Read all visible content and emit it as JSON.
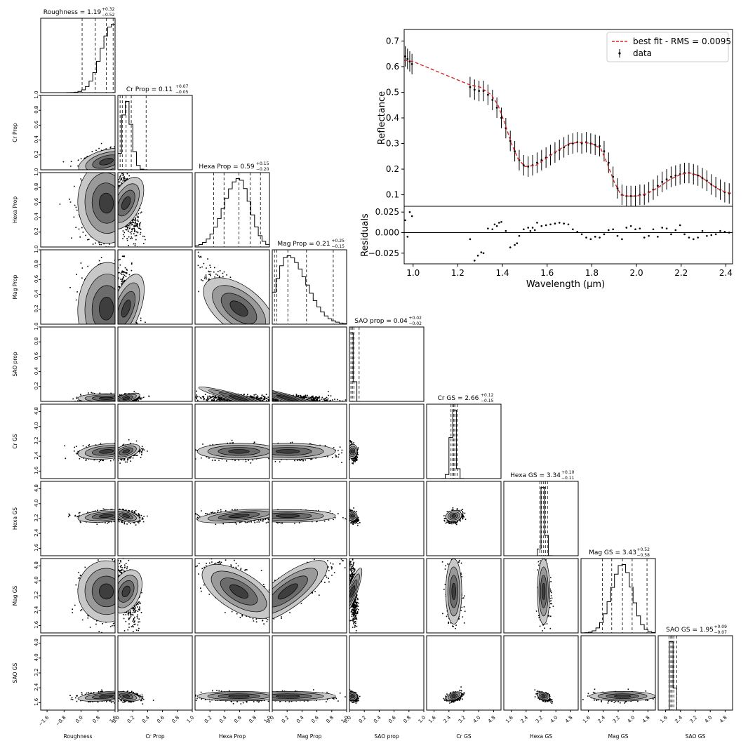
{
  "chart_data": [
    {
      "type": "corner",
      "parameters": [
        {
          "name": "Roughness",
          "title": "Roughness = 1.19",
          "median": 1.19,
          "plus": "0.32",
          "minus": "0.52",
          "range": [
            -1.9,
            1.6
          ],
          "ticks": [
            "−1.6",
            "−0.8",
            "0.0",
            "0.8",
            "1.6"
          ],
          "tick_values": [
            -1.6,
            -0.8,
            0.0,
            0.8,
            1.6
          ],
          "quantiles": [
            0.05,
            0.67,
            1.19,
            1.51
          ]
        },
        {
          "name": "Cr Prop",
          "title": "Cr Prop = 0.11",
          "median": 0.11,
          "plus": "0.07",
          "minus": "0.05",
          "range": [
            0.0,
            1.0
          ],
          "ticks": [
            "0.0",
            "0.2",
            "0.4",
            "0.6",
            "0.8",
            "1.0"
          ],
          "tick_values": [
            0,
            0.2,
            0.4,
            0.6,
            0.8,
            1.0
          ],
          "quantiles": [
            0.03,
            0.06,
            0.11,
            0.18,
            0.38
          ]
        },
        {
          "name": "Hexa Prop",
          "title": "Hexa Prop = 0.59",
          "median": 0.59,
          "plus": "0.15",
          "minus": "0.20",
          "range": [
            0.0,
            1.0
          ],
          "ticks": [
            "0.2",
            "0.4",
            "0.6",
            "0.8",
            "1.0"
          ],
          "tick_values": [
            0.2,
            0.4,
            0.6,
            0.8,
            1.0
          ],
          "quantiles": [
            0.25,
            0.39,
            0.59,
            0.74,
            0.88
          ]
        },
        {
          "name": "Mag Prop",
          "title": "Mag Prop = 0.21",
          "median": 0.21,
          "plus": "0.25",
          "minus": "0.15",
          "range": [
            0.0,
            1.0
          ],
          "ticks": [
            "0.0",
            "0.2",
            "0.4",
            "0.6",
            "0.8",
            "1.0"
          ],
          "tick_values": [
            0,
            0.2,
            0.4,
            0.6,
            0.8,
            1.0
          ],
          "quantiles": [
            0.03,
            0.06,
            0.21,
            0.46,
            0.82
          ]
        },
        {
          "name": "SAO prop",
          "title": "SAO prop = 0.04",
          "median": 0.04,
          "plus": "0.02",
          "minus": "0.02",
          "range": [
            0.0,
            1.0
          ],
          "ticks": [
            "0.0",
            "0.2",
            "0.4",
            "0.6",
            "0.8",
            "1.0"
          ],
          "tick_values": [
            0,
            0.2,
            0.4,
            0.6,
            0.8,
            1.0
          ],
          "quantiles": [
            0.02,
            0.04,
            0.06,
            0.13
          ]
        },
        {
          "name": "Cr GS",
          "title": "Cr GS = 2.66",
          "median": 2.66,
          "plus": "0.12",
          "minus": "0.15",
          "range": [
            1.2,
            5.2
          ],
          "ticks": [
            "1.6",
            "2.4",
            "3.2",
            "4.0",
            "4.8"
          ],
          "tick_values": [
            1.6,
            2.4,
            3.2,
            4.0,
            4.8
          ],
          "quantiles": [
            2.51,
            2.6,
            2.66,
            2.72,
            2.84
          ]
        },
        {
          "name": "Hexa GS",
          "title": "Hexa GS = 3.34",
          "median": 3.34,
          "plus": "0.10",
          "minus": "0.11",
          "range": [
            1.2,
            5.2
          ],
          "ticks": [
            "1.6",
            "2.4",
            "3.2",
            "4.0",
            "4.8"
          ],
          "tick_values": [
            1.6,
            2.4,
            3.2,
            4.0,
            4.8
          ],
          "quantiles": [
            3.14,
            3.23,
            3.34,
            3.44,
            3.55
          ]
        },
        {
          "name": "Mag GS",
          "title": "Mag GS = 3.43",
          "median": 3.43,
          "plus": "0.52",
          "minus": "0.58",
          "range": [
            1.2,
            5.2
          ],
          "ticks": [
            "1.6",
            "2.4",
            "3.2",
            "4.0",
            "4.8"
          ],
          "tick_values": [
            1.6,
            2.4,
            3.2,
            4.0,
            4.8
          ],
          "quantiles": [
            2.35,
            2.85,
            3.43,
            3.95,
            4.75
          ]
        },
        {
          "name": "SAO GS",
          "title": "SAO GS = 1.95",
          "median": 1.95,
          "plus": "0.09",
          "minus": "0.07",
          "range": [
            1.2,
            5.2
          ],
          "ticks": [
            "1.6",
            "2.4",
            "3.2",
            "4.0",
            "4.8"
          ],
          "tick_values": [
            1.6,
            2.4,
            3.2,
            4.0,
            4.8
          ],
          "quantiles": [
            1.78,
            1.88,
            1.95,
            2.04,
            2.2
          ]
        }
      ],
      "row_tick_labels": {
        "Cr Prop": [
          "0.2",
          "0.4",
          "0.6",
          "0.8",
          "1.0"
        ],
        "Hexa Prop": [
          "0.2",
          "0.4",
          "0.6",
          "0.8",
          "1.0"
        ],
        "Mag Prop": [
          "0.2",
          "0.4",
          "0.6",
          "0.8",
          "1.0"
        ],
        "SAO prop": [
          "0.2",
          "0.4",
          "0.6",
          "0.8",
          "1.0"
        ],
        "Cr GS": [
          "1.6",
          "2.4",
          "3.2",
          "4.0",
          "4.8"
        ],
        "Hexa GS": [
          "1.6",
          "2.4",
          "3.2",
          "4.0",
          "4.8"
        ],
        "Mag GS": [
          "1.6",
          "2.4",
          "3.2",
          "4.0",
          "4.8"
        ],
        "SAO GS": [
          "1.6",
          "2.4",
          "3.2",
          "4.0",
          "4.8"
        ]
      },
      "row_tick_values": {
        "Cr Prop": [
          0.2,
          0.4,
          0.6,
          0.8,
          1.0
        ],
        "Hexa Prop": [
          0.2,
          0.4,
          0.6,
          0.8,
          1.0
        ],
        "Mag Prop": [
          0.2,
          0.4,
          0.6,
          0.8,
          1.0
        ],
        "SAO prop": [
          0.2,
          0.4,
          0.6,
          0.8,
          1.0
        ],
        "Cr GS": [
          1.6,
          2.4,
          3.2,
          4.0,
          4.8
        ],
        "Hexa GS": [
          1.6,
          2.4,
          3.2,
          4.0,
          4.8
        ],
        "Mag GS": [
          1.6,
          2.4,
          3.2,
          4.0,
          4.8
        ],
        "SAO GS": [
          1.6,
          2.4,
          3.2,
          4.0,
          4.8
        ]
      },
      "colors": {
        "mark": "#000000",
        "dash": "#333333",
        "contour": [
          "#c8c8c8",
          "#9a9a9a",
          "#6c6c6c",
          "#3e3e3e"
        ]
      }
    },
    {
      "type": "line",
      "title": "",
      "xlabel": "Wavelength (μm)",
      "ylabel": "Reflectance",
      "xlim": [
        0.96,
        2.43
      ],
      "ylim": [
        0.055,
        0.745
      ],
      "xticks": [
        "1.0",
        "1.2",
        "1.4",
        "1.6",
        "1.8",
        "2.0",
        "2.2",
        "2.4"
      ],
      "xtick_values": [
        1.0,
        1.2,
        1.4,
        1.6,
        1.8,
        2.0,
        2.2,
        2.4
      ],
      "yticks": [
        "0.1",
        "0.2",
        "0.3",
        "0.4",
        "0.5",
        "0.6",
        "0.7"
      ],
      "ytick_values": [
        0.1,
        0.2,
        0.3,
        0.4,
        0.5,
        0.6,
        0.7
      ],
      "legend": {
        "placement": "top-right",
        "fit_label": "best fit - RMS = 0.0095",
        "data_label": "data"
      },
      "colors": {
        "fit": "#d62728",
        "data": "#000000"
      },
      "fit": {
        "x": [
          0.96,
          1.0,
          1.25,
          1.3,
          1.35,
          1.38,
          1.41,
          1.44,
          1.47,
          1.5,
          1.55,
          1.6,
          1.65,
          1.7,
          1.75,
          1.8,
          1.84,
          1.87,
          1.9,
          1.93,
          1.96,
          2.0,
          2.05,
          2.1,
          2.15,
          2.2,
          2.24,
          2.28,
          2.32,
          2.36,
          2.4,
          2.43
        ],
        "y": [
          0.625,
          0.62,
          0.53,
          0.52,
          0.49,
          0.45,
          0.38,
          0.3,
          0.24,
          0.21,
          0.215,
          0.245,
          0.275,
          0.3,
          0.305,
          0.3,
          0.28,
          0.22,
          0.15,
          0.1,
          0.095,
          0.095,
          0.105,
          0.13,
          0.16,
          0.18,
          0.185,
          0.175,
          0.15,
          0.125,
          0.11,
          0.105
        ]
      },
      "data_points": {
        "x": [
          0.965,
          0.975,
          0.985,
          0.995,
          1.255,
          1.275,
          1.295,
          1.315,
          1.335,
          1.355,
          1.375,
          1.395,
          1.415,
          1.435,
          1.455,
          1.475,
          1.495,
          1.515,
          1.535,
          1.555,
          1.575,
          1.595,
          1.615,
          1.635,
          1.655,
          1.675,
          1.695,
          1.715,
          1.735,
          1.755,
          1.775,
          1.795,
          1.815,
          1.835,
          1.855,
          1.875,
          1.895,
          1.915,
          1.935,
          1.955,
          1.975,
          1.995,
          2.015,
          2.035,
          2.055,
          2.075,
          2.095,
          2.115,
          2.135,
          2.155,
          2.175,
          2.195,
          2.215,
          2.235,
          2.255,
          2.275,
          2.295,
          2.315,
          2.335,
          2.355,
          2.375,
          2.395,
          2.415
        ],
        "y": [
          0.64,
          0.63,
          0.62,
          0.61,
          0.52,
          0.51,
          0.505,
          0.505,
          0.49,
          0.47,
          0.44,
          0.4,
          0.36,
          0.31,
          0.27,
          0.235,
          0.215,
          0.21,
          0.215,
          0.225,
          0.235,
          0.245,
          0.255,
          0.265,
          0.275,
          0.285,
          0.295,
          0.3,
          0.305,
          0.3,
          0.305,
          0.3,
          0.295,
          0.29,
          0.27,
          0.225,
          0.17,
          0.125,
          0.1,
          0.095,
          0.095,
          0.095,
          0.1,
          0.1,
          0.11,
          0.12,
          0.135,
          0.15,
          0.16,
          0.17,
          0.175,
          0.18,
          0.185,
          0.185,
          0.18,
          0.175,
          0.165,
          0.155,
          0.14,
          0.13,
          0.12,
          0.11,
          0.105
        ],
        "yerr": 0.04
      },
      "residuals": {
        "ylabel": "Residuals",
        "ylim": [
          -0.038,
          0.032
        ],
        "yticks": [
          "−0.025",
          "0.000",
          "0.025"
        ],
        "ytick_values": [
          -0.025,
          0.0,
          0.025
        ],
        "x": [
          0.965,
          0.975,
          0.985,
          0.995,
          1.255,
          1.275,
          1.29,
          1.305,
          1.315,
          1.335,
          1.355,
          1.365,
          1.375,
          1.385,
          1.395,
          1.415,
          1.435,
          1.455,
          1.465,
          1.475,
          1.495,
          1.515,
          1.525,
          1.535,
          1.545,
          1.555,
          1.575,
          1.595,
          1.615,
          1.635,
          1.655,
          1.675,
          1.695,
          1.715,
          1.735,
          1.755,
          1.775,
          1.795,
          1.815,
          1.835,
          1.855,
          1.875,
          1.895,
          1.915,
          1.935,
          1.955,
          1.975,
          1.995,
          2.015,
          2.035,
          2.055,
          2.075,
          2.095,
          2.115,
          2.135,
          2.155,
          2.175,
          2.195,
          2.215,
          2.235,
          2.255,
          2.275,
          2.295,
          2.315,
          2.335,
          2.355,
          2.375,
          2.395,
          2.415
        ],
        "y": [
          0.015,
          -0.005,
          0.025,
          0.02,
          -0.008,
          -0.034,
          -0.028,
          -0.024,
          -0.025,
          0.005,
          0.004,
          0.01,
          0.008,
          0.012,
          0.013,
          0.002,
          -0.018,
          -0.015,
          -0.013,
          -0.004,
          0.004,
          0.006,
          0.002,
          0.006,
          0.003,
          0.012,
          0.008,
          0.009,
          0.01,
          0.011,
          0.012,
          0.011,
          0.01,
          0.004,
          0.001,
          -0.002,
          -0.006,
          -0.008,
          -0.005,
          -0.006,
          -0.002,
          0.003,
          0.004,
          -0.004,
          -0.008,
          0.006,
          0.008,
          0.004,
          0.005,
          -0.006,
          -0.004,
          0.004,
          -0.005,
          0.006,
          0.005,
          -0.002,
          0.003,
          0.009,
          -0.002,
          -0.006,
          -0.008,
          -0.006,
          0.002,
          -0.004,
          -0.003,
          -0.002,
          0.002,
          0.001,
          0.0
        ]
      }
    }
  ]
}
